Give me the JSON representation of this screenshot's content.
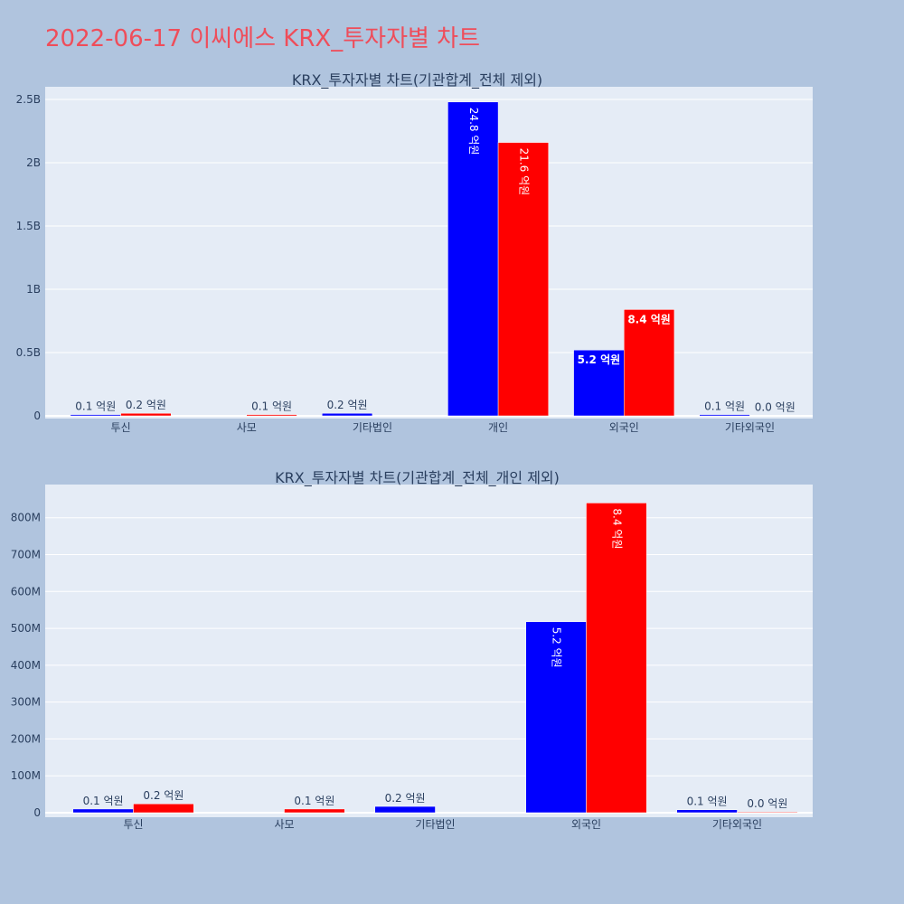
{
  "title": "2022-06-17 이씨에스 KRX_투자자별 차트",
  "colors": {
    "series_a": "#0000ff",
    "series_b": "#ff0000",
    "title": "#ef4d5a",
    "plot_bg": "#e5ecf6",
    "page_bg": "#b0c4de"
  },
  "chart_data": [
    {
      "type": "bar",
      "title": "KRX_투자자별 차트(기관합계_전체 제외)",
      "categories": [
        "투신",
        "사모",
        "기타법인",
        "개인",
        "외국인",
        "기타외국인"
      ],
      "ylim": [
        0,
        2600000000
      ],
      "yticks": [
        0,
        500000000,
        1000000000,
        1500000000,
        2000000000,
        2500000000
      ],
      "ytick_labels": [
        "0",
        "0.5B",
        "1B",
        "1.5B",
        "2B",
        "2.5B"
      ],
      "series": [
        {
          "color": "#0000ff",
          "values": [
            10000000,
            0,
            20000000,
            2480000000,
            520000000,
            10000000
          ],
          "labels": [
            "0.1 억원",
            "",
            "0.2 억원",
            "24.8 억원",
            "5.2 억원",
            "0.1 억원"
          ]
        },
        {
          "color": "#ff0000",
          "values": [
            20000000,
            10000000,
            0,
            2160000000,
            840000000,
            2000000
          ],
          "labels": [
            "0.2 억원",
            "0.1 억원",
            "",
            "21.6 억원",
            "8.4 억원",
            "0.0 억원"
          ]
        }
      ],
      "grid": true
    },
    {
      "type": "bar",
      "title": "KRX_투자자별 차트(기관합계_전체_개인 제외)",
      "categories": [
        "투신",
        "사모",
        "기타법인",
        "외국인",
        "기타외국인"
      ],
      "ylim": [
        0,
        890000000
      ],
      "yticks": [
        0,
        100000000,
        200000000,
        300000000,
        400000000,
        500000000,
        600000000,
        700000000,
        800000000
      ],
      "ytick_labels": [
        "0",
        "100M",
        "200M",
        "300M",
        "400M",
        "500M",
        "600M",
        "700M",
        "800M"
      ],
      "series": [
        {
          "color": "#0000ff",
          "values": [
            10000000,
            0,
            17000000,
            518000000,
            8000000
          ],
          "labels": [
            "0.1 억원",
            "",
            "0.2 억원",
            "5.2 억원",
            "0.1 억원"
          ]
        },
        {
          "color": "#ff0000",
          "values": [
            24000000,
            10000000,
            0,
            840000000,
            2000000
          ],
          "labels": [
            "0.2 억원",
            "0.1 억원",
            "",
            "8.4 억원",
            "0.0 억원"
          ]
        }
      ],
      "grid": true
    }
  ]
}
